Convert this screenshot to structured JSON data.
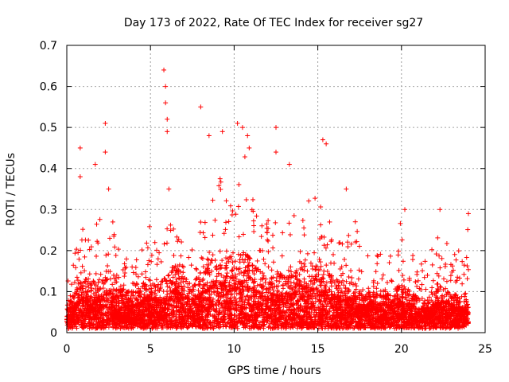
{
  "chart_data": {
    "type": "scatter",
    "title": "Day 173 of 2022, Rate Of TEC Index for receiver sg27",
    "xlabel": "GPS time / hours",
    "ylabel": "ROTI / TECUs",
    "xlim": [
      0,
      25
    ],
    "ylim": [
      0,
      0.7
    ],
    "x_ticks": [
      "0",
      "5",
      "10",
      "15",
      "20",
      "25"
    ],
    "y_ticks": [
      "0",
      "0.1",
      "0.2",
      "0.3",
      "0.4",
      "0.5",
      "0.6",
      "0.7"
    ],
    "grid": true,
    "marker": "plus",
    "color": "#ff0000",
    "x_range_of_data": [
      0,
      24
    ],
    "envelope": {
      "hours": [
        0,
        0.5,
        1,
        1.5,
        2,
        2.5,
        3,
        3.5,
        4,
        4.5,
        5,
        5.5,
        6,
        6.5,
        7,
        7.5,
        8,
        8.5,
        9,
        9.5,
        10,
        10.5,
        11,
        11.5,
        12,
        12.5,
        13,
        13.5,
        14,
        14.5,
        15,
        15.5,
        16,
        16.5,
        17,
        17.5,
        18,
        18.5,
        19,
        19.5,
        20,
        20.5,
        21,
        21.5,
        22,
        22.5,
        23,
        23.5,
        24
      ],
      "upper_roti": [
        0.12,
        0.2,
        0.3,
        0.22,
        0.3,
        0.33,
        0.25,
        0.2,
        0.18,
        0.25,
        0.27,
        0.22,
        0.27,
        0.33,
        0.25,
        0.22,
        0.28,
        0.33,
        0.4,
        0.38,
        0.35,
        0.45,
        0.38,
        0.3,
        0.3,
        0.33,
        0.25,
        0.3,
        0.35,
        0.35,
        0.33,
        0.3,
        0.25,
        0.22,
        0.33,
        0.22,
        0.2,
        0.2,
        0.2,
        0.2,
        0.28,
        0.2,
        0.18,
        0.18,
        0.22,
        0.28,
        0.2,
        0.2,
        0.28
      ],
      "typical_roti": [
        0.04,
        0.06,
        0.08,
        0.07,
        0.08,
        0.09,
        0.08,
        0.06,
        0.06,
        0.07,
        0.08,
        0.07,
        0.08,
        0.1,
        0.08,
        0.07,
        0.09,
        0.1,
        0.12,
        0.12,
        0.11,
        0.12,
        0.11,
        0.09,
        0.08,
        0.09,
        0.08,
        0.09,
        0.1,
        0.1,
        0.1,
        0.09,
        0.08,
        0.07,
        0.08,
        0.06,
        0.06,
        0.06,
        0.06,
        0.06,
        0.07,
        0.06,
        0.05,
        0.05,
        0.06,
        0.07,
        0.06,
        0.05,
        0.06
      ]
    },
    "outliers": [
      {
        "x": 0.8,
        "y": 0.45
      },
      {
        "x": 0.8,
        "y": 0.38
      },
      {
        "x": 1.7,
        "y": 0.41
      },
      {
        "x": 2.3,
        "y": 0.51
      },
      {
        "x": 2.3,
        "y": 0.44
      },
      {
        "x": 2.5,
        "y": 0.35
      },
      {
        "x": 5.8,
        "y": 0.64
      },
      {
        "x": 5.9,
        "y": 0.6
      },
      {
        "x": 5.9,
        "y": 0.56
      },
      {
        "x": 6.0,
        "y": 0.52
      },
      {
        "x": 6.0,
        "y": 0.49
      },
      {
        "x": 6.1,
        "y": 0.35
      },
      {
        "x": 8.0,
        "y": 0.55
      },
      {
        "x": 8.5,
        "y": 0.48
      },
      {
        "x": 9.3,
        "y": 0.49
      },
      {
        "x": 10.2,
        "y": 0.51
      },
      {
        "x": 10.5,
        "y": 0.5
      },
      {
        "x": 10.8,
        "y": 0.48
      },
      {
        "x": 10.9,
        "y": 0.45
      },
      {
        "x": 12.5,
        "y": 0.5
      },
      {
        "x": 12.5,
        "y": 0.44
      },
      {
        "x": 13.3,
        "y": 0.41
      },
      {
        "x": 15.3,
        "y": 0.47
      },
      {
        "x": 15.5,
        "y": 0.46
      },
      {
        "x": 16.7,
        "y": 0.35
      },
      {
        "x": 20.2,
        "y": 0.3
      },
      {
        "x": 22.3,
        "y": 0.3
      },
      {
        "x": 24.0,
        "y": 0.29
      }
    ]
  }
}
